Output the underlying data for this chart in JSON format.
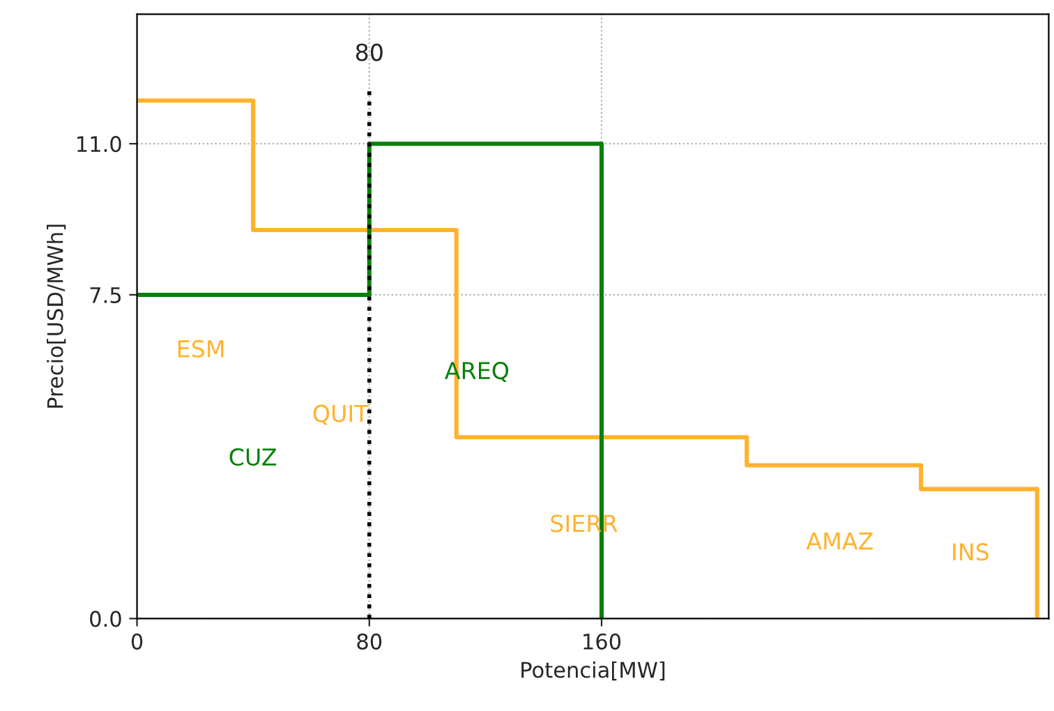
{
  "chart_data": {
    "type": "step",
    "xlabel": "Potencia[MW]",
    "ylabel": "Precio[USD/MWh]",
    "series": [
      {
        "color": "#ffb22c",
        "x": [
          0,
          40,
          110,
          210,
          270,
          310
        ],
        "values": [
          12,
          9,
          4.2,
          3.55,
          3.0,
          0
        ]
      },
      {
        "color": "#0a800a",
        "x": [
          0,
          80,
          160
        ],
        "values": [
          7.5,
          11,
          0
        ]
      }
    ],
    "xlim": [
      0,
      314
    ],
    "xticks": [
      0,
      80,
      160
    ],
    "ylim": [
      0,
      14
    ],
    "yticks": [
      {
        "value": 0,
        "label": "0.0"
      },
      {
        "value": 7.5,
        "label": "7.5"
      },
      {
        "value": 11,
        "label": "11.0"
      }
    ],
    "grid": true,
    "line_style": "solid",
    "ref_lines": [
      {
        "axis": "x",
        "value": 80,
        "label": "80",
        "color": "#000000",
        "line_style": "dotted"
      }
    ],
    "annotations": [
      "ESM",
      "QUIT",
      "CUZ",
      "AREQ",
      "SIERR",
      "AMAZ",
      "INS"
    ]
  }
}
